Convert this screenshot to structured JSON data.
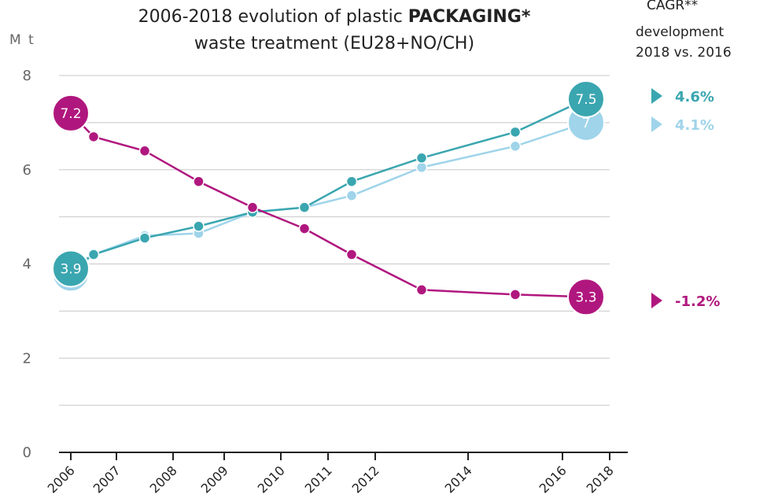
{
  "title": {
    "line1_prefix": "2006-2018 evolution of plastic",
    "line1_emph": "PACKAGING*",
    "line2": "waste treatment (EU28+NO/CH)"
  },
  "cagr_header": {
    "line1": "CAGR**",
    "line2": "development",
    "line3": "2018 vs. 2016"
  },
  "chart_data": {
    "type": "line",
    "ylabel": "M t",
    "ylim": [
      0,
      8
    ],
    "yticks": [
      0,
      2,
      4,
      6,
      8
    ],
    "grid": true,
    "x_tick_labels": [
      "2006",
      "2007",
      "2008",
      "2009",
      "2010",
      "2011",
      "2012",
      "2014",
      "2016",
      "2018"
    ],
    "series": [
      {
        "key": "dark_teal",
        "color": "#3aa6b0",
        "x": [
          "2006",
          "2006.5",
          "2007.5",
          "2008.5",
          "2009.5",
          "2010.5",
          "2011.5",
          "2013",
          "2015",
          "2017"
        ],
        "values": [
          3.9,
          4.2,
          4.55,
          4.8,
          5.1,
          5.2,
          5.75,
          6.25,
          6.8,
          7.5
        ],
        "end_label": "7.5",
        "start_label": "3.9",
        "cagr": "4.6%"
      },
      {
        "key": "light_blue",
        "color": "#9fd4ea",
        "x": [
          "2006",
          "2006.5",
          "2007.5",
          "2008.5",
          "2009.5",
          "2010.5",
          "2011.5",
          "2013",
          "2015",
          "2017"
        ],
        "values": [
          3.8,
          4.2,
          4.6,
          4.65,
          5.1,
          5.2,
          5.45,
          6.05,
          6.5,
          7.0
        ],
        "end_label": "7",
        "start_label": "3.8",
        "cagr": "4.1%"
      },
      {
        "key": "magenta",
        "color": "#b0177e",
        "x": [
          "2006",
          "2006.5",
          "2007.5",
          "2008.5",
          "2009.5",
          "2010.5",
          "2011.5",
          "2013",
          "2015",
          "2017"
        ],
        "values": [
          7.2,
          6.7,
          6.4,
          5.75,
          5.2,
          4.75,
          4.2,
          3.45,
          3.35,
          3.3
        ],
        "end_label": "3.3",
        "start_label": "7.2",
        "cagr": "-1.2%"
      }
    ]
  },
  "colors": {
    "grid": "#c8c8c8",
    "axis": "#222222"
  }
}
